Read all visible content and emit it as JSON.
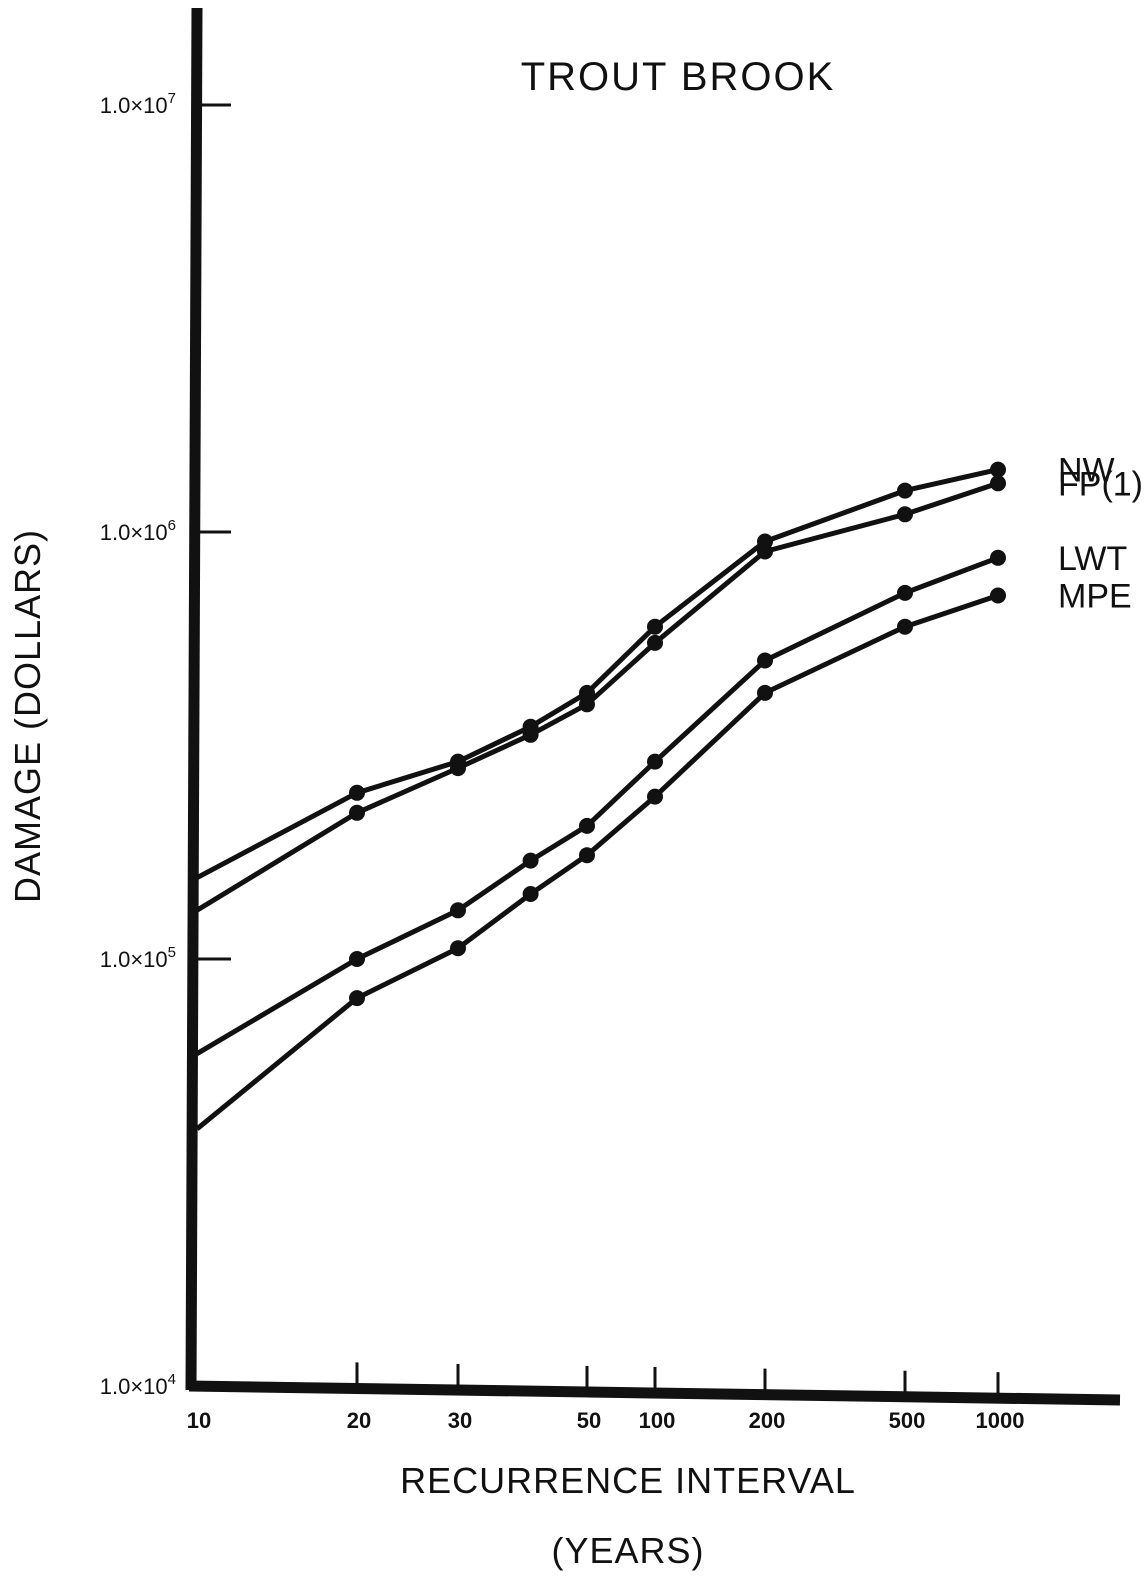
{
  "chart_data": {
    "type": "line",
    "title": "TROUT BROOK",
    "xlabel_line1": "RECURRENCE INTERVAL",
    "xlabel_line2": "(YEARS)",
    "ylabel": "DAMAGE (DOLLARS)",
    "y_scale": "log",
    "ylim": [
      10000,
      10000000
    ],
    "y_ticks": [
      {
        "value": 10000,
        "label": "1.0×10",
        "exp": "4"
      },
      {
        "value": 100000,
        "label": "1.0×10",
        "exp": "5"
      },
      {
        "value": 1000000,
        "label": "1.0×10",
        "exp": "6"
      },
      {
        "value": 10000000,
        "label": "1.0×10",
        "exp": "7"
      }
    ],
    "x_categories": [
      "10",
      "20",
      "30",
      "50",
      "100",
      "200",
      "500",
      "1000"
    ],
    "grid": false,
    "legend_position": "right, at line ends",
    "colors": {
      "line": "#111111",
      "axis": "#111111",
      "background": "#ffffff"
    },
    "series": [
      {
        "name": "NW",
        "x": [
          10,
          20,
          30,
          40,
          50,
          100,
          200,
          500,
          1000
        ],
        "y": [
          155000,
          245000,
          290000,
          350000,
          420000,
          600000,
          950000,
          1250000,
          1400000
        ]
      },
      {
        "name": "FP(1)",
        "x": [
          10,
          20,
          30,
          40,
          50,
          100,
          200,
          500,
          1000
        ],
        "y": [
          130000,
          220000,
          280000,
          335000,
          395000,
          550000,
          900000,
          1100000,
          1300000
        ]
      },
      {
        "name": "LWT",
        "x": [
          10,
          20,
          30,
          40,
          50,
          100,
          200,
          500,
          1000
        ],
        "y": [
          60000,
          100000,
          130000,
          170000,
          205000,
          290000,
          500000,
          720000,
          870000
        ]
      },
      {
        "name": "MPE",
        "x": [
          10,
          20,
          30,
          40,
          50,
          100,
          200,
          500,
          1000
        ],
        "y": [
          40000,
          81000,
          106000,
          142000,
          175000,
          240000,
          420000,
          600000,
          710000
        ]
      }
    ]
  }
}
